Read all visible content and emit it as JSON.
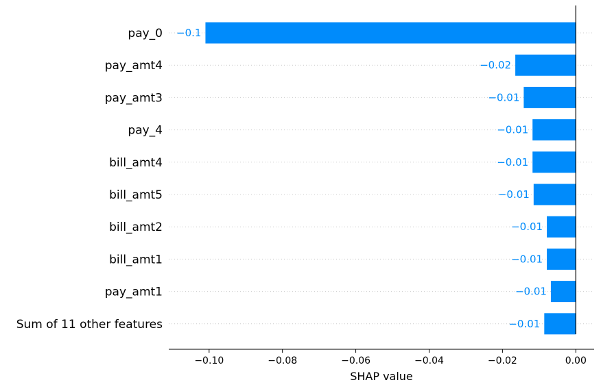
{
  "chart_data": {
    "type": "bar",
    "orientation": "horizontal",
    "xlabel": "SHAP value",
    "xlim": [
      -0.111,
      0.005
    ],
    "xticks": [
      -0.1,
      -0.08,
      -0.06,
      -0.04,
      -0.02,
      0.0
    ],
    "xtick_labels": [
      "−0.10",
      "−0.08",
      "−0.06",
      "−0.04",
      "−0.02",
      "0.00"
    ],
    "categories": [
      "pay_0",
      "pay_amt4",
      "pay_amt3",
      "pay_4",
      "bill_amt4",
      "bill_amt5",
      "bill_amt2",
      "bill_amt1",
      "pay_amt1",
      "Sum of 11 other features"
    ],
    "values": [
      -0.101,
      -0.0165,
      -0.0142,
      -0.0118,
      -0.0118,
      -0.0115,
      -0.0079,
      -0.0079,
      -0.0068,
      -0.0086
    ],
    "value_labels": [
      "−0.1",
      "−0.02",
      "−0.01",
      "−0.01",
      "−0.01",
      "−0.01",
      "−0.01",
      "−0.01",
      "−0.01",
      "−0.01"
    ],
    "grid": "dotted horizontal row guides",
    "bar_color": "#008bfb",
    "label_color": "#008bfb",
    "axis_color": "#000000",
    "guide_color": "#cccccc"
  }
}
